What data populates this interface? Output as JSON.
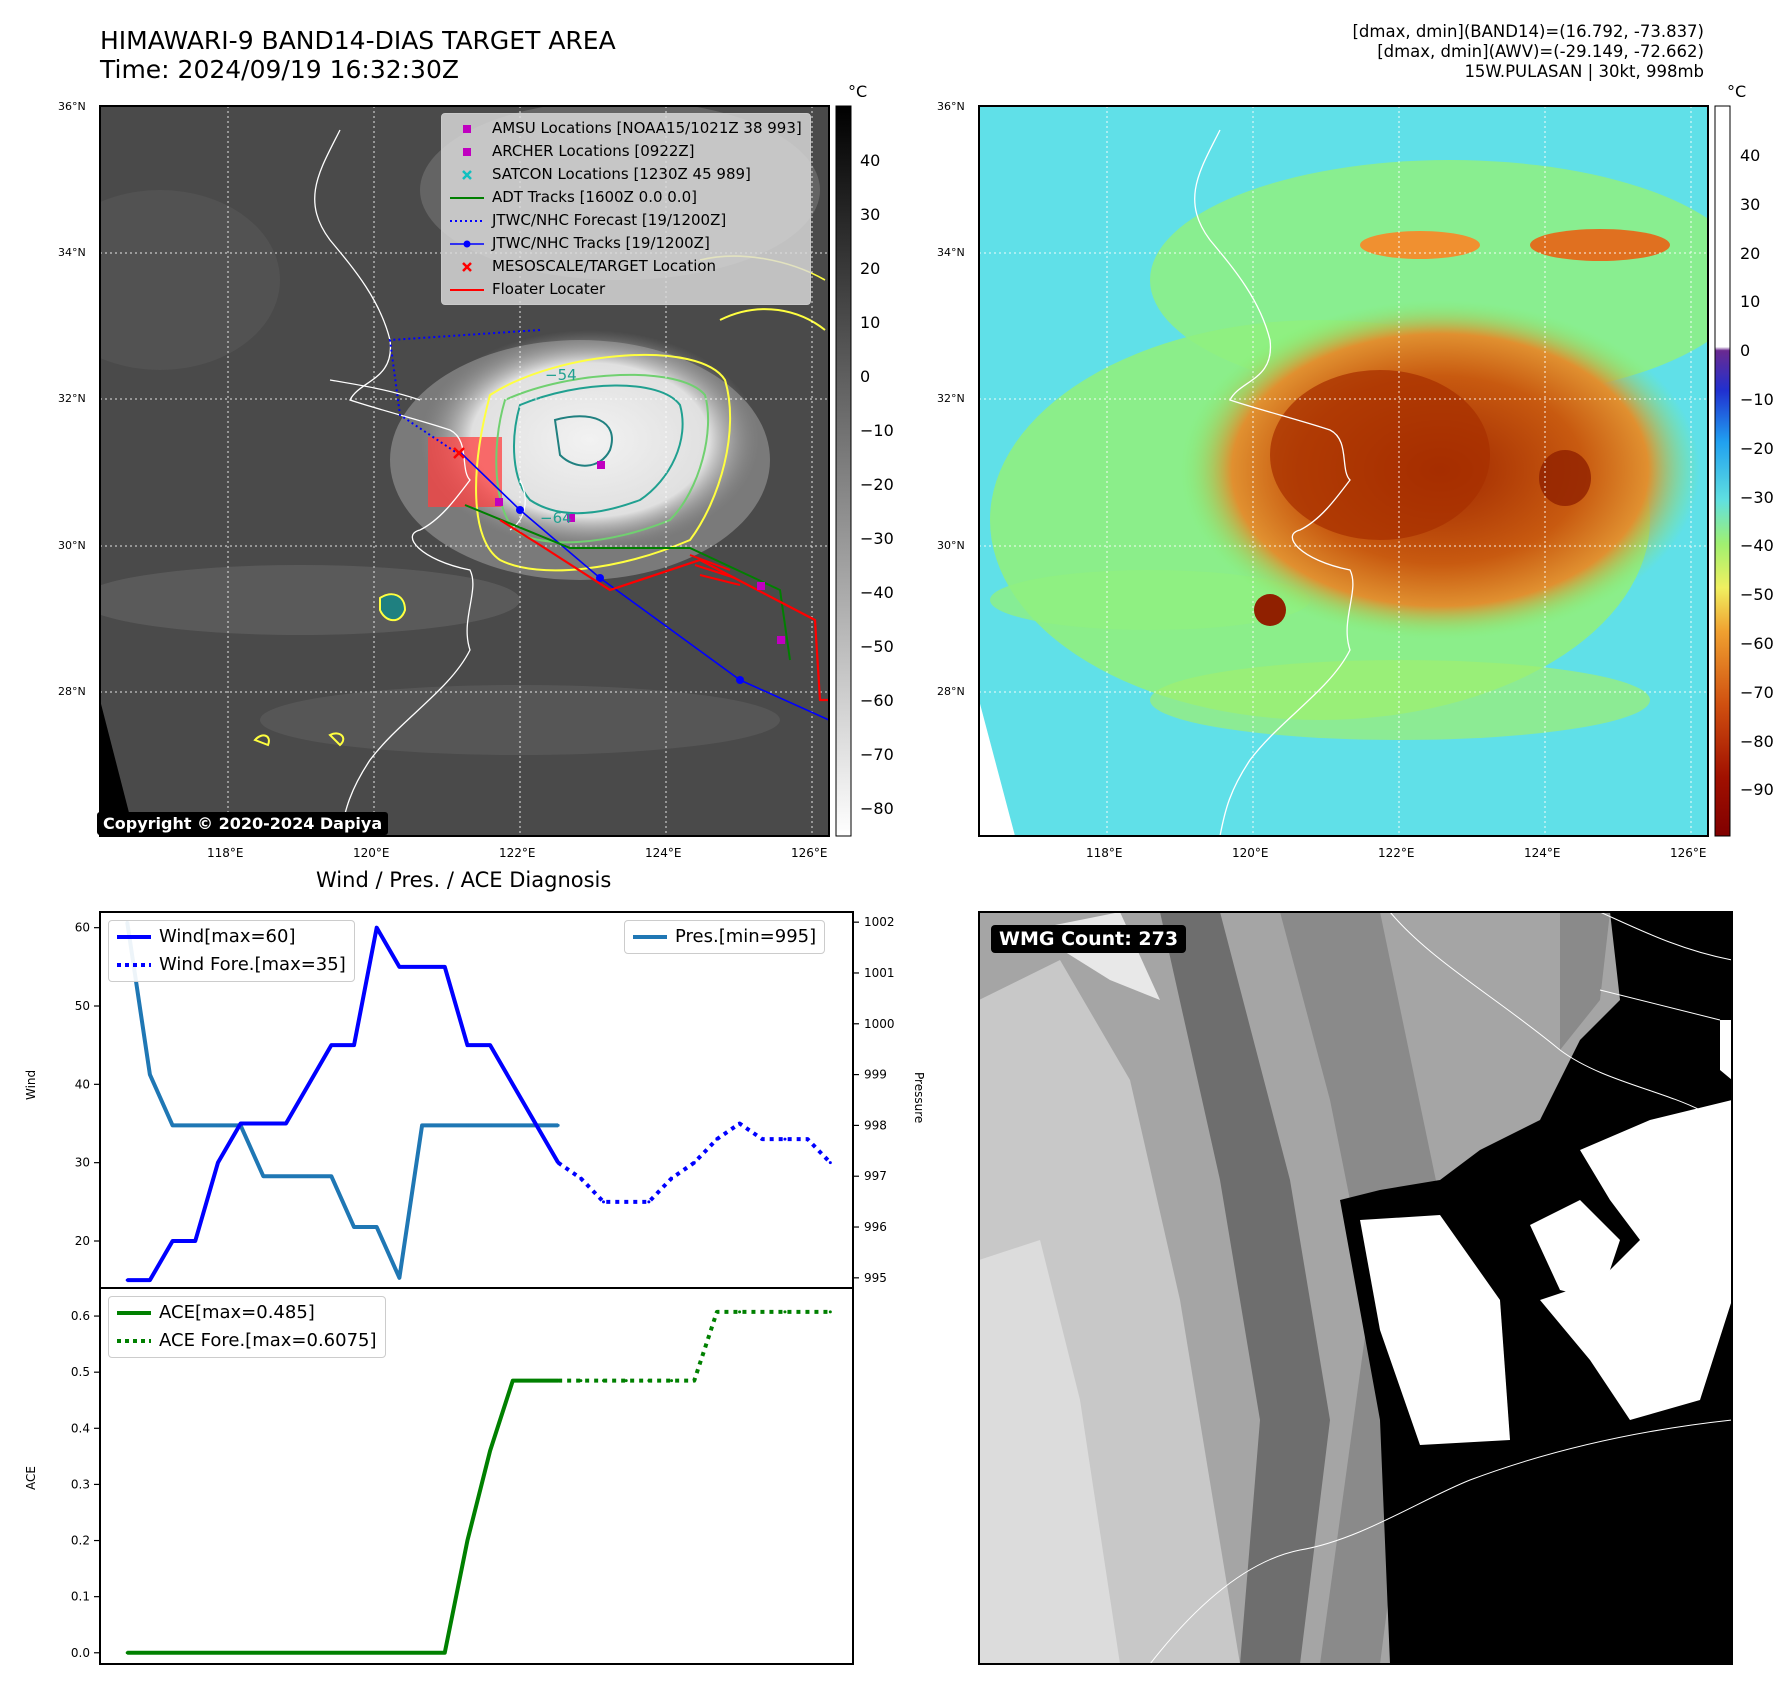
{
  "header": {
    "title_line1": "HIMAWARI-9 BAND14-DIAS TARGET AREA",
    "title_line2": "Time: 2024/09/19 16:32:30Z",
    "right_line1": "[dmax, dmin](BAND14)=(16.792, -73.837)",
    "right_line2": "[dmax, dmin](AWV)=(-29.149, -72.662)",
    "right_line3": "15W.PULASAN | 30kt, 998mb"
  },
  "maps": {
    "lat_labels": [
      "36°N",
      "34°N",
      "32°N",
      "30°N",
      "28°N"
    ],
    "lon_labels": [
      "118°E",
      "120°E",
      "122°E",
      "124°E",
      "126°E"
    ],
    "unit": "°C",
    "ir_colorbar_ticks": [
      "40",
      "30",
      "20",
      "10",
      "0",
      "−10",
      "−20",
      "−30",
      "−40",
      "−50",
      "−60",
      "−70",
      "−80"
    ],
    "awv_colorbar_ticks": [
      "40",
      "30",
      "20",
      "10",
      "0",
      "−10",
      "−20",
      "−30",
      "−40",
      "−50",
      "−60",
      "−70",
      "−80",
      "−90"
    ],
    "contour_labels": [
      "−54",
      "−64"
    ],
    "copyright": "Copyright © 2020-2024 Dapiya",
    "legend": [
      {
        "label": "AMSU Locations [NOAA15/1021Z 38 993]",
        "symbol": "square",
        "color": "#c000c0"
      },
      {
        "label": "ARCHER Locations [0922Z]",
        "symbol": "square",
        "color": "#c000c0"
      },
      {
        "label": "SATCON Locations [1230Z 45 989]",
        "symbol": "x",
        "color": "#10c0c0"
      },
      {
        "label": "ADT Tracks [1600Z 0.0 0.0]",
        "symbol": "line",
        "color": "#007f00"
      },
      {
        "label": "JTWC/NHC Forecast [19/1200Z]",
        "symbol": "dotted",
        "color": "#0000ff"
      },
      {
        "label": "JTWC/NHC Tracks [19/1200Z]",
        "symbol": "line-dot",
        "color": "#0000ff"
      },
      {
        "label": "MESOSCALE/TARGET Location",
        "symbol": "x",
        "color": "#ff0000"
      },
      {
        "label": "Floater Locater",
        "symbol": "line",
        "color": "#ff0000"
      }
    ]
  },
  "diagnosis": {
    "title": "Wind / Pres. / ACE Diagnosis",
    "wind_axis_label": "Wind",
    "pressure_axis_label": "Pressure",
    "ace_axis_label": "ACE",
    "wind_legend": "Wind[max=60]",
    "wind_fore_legend": "Wind Fore.[max=35]",
    "pres_legend": "Pres.[min=995]",
    "ace_legend": "ACE[max=0.485]",
    "ace_fore_legend": "ACE Fore.[max=0.6075]"
  },
  "wmg": {
    "badge": "WMG Count: 273"
  },
  "chart_data": [
    {
      "type": "line",
      "title": "Wind / Pres. / ACE Diagnosis",
      "ylabel": "Wind",
      "ylim": [
        14,
        62
      ],
      "y_ticks": [
        20,
        30,
        40,
        50,
        60
      ],
      "series": [
        {
          "name": "Wind[max=60]",
          "style": "solid",
          "color": "#0000ff",
          "x": [
            0,
            1,
            2,
            3,
            4,
            5,
            6,
            7,
            8,
            9,
            10,
            11,
            12,
            13,
            14,
            15,
            16,
            17,
            18,
            19
          ],
          "values": [
            15,
            15,
            20,
            20,
            30,
            35,
            35,
            35,
            40,
            45,
            45,
            60,
            55,
            55,
            55,
            45,
            45,
            40,
            35,
            30
          ]
        },
        {
          "name": "Wind Fore.[max=35]",
          "style": "dotted",
          "color": "#0000ff",
          "x": [
            19,
            20,
            21,
            22,
            23,
            24,
            25,
            26,
            27,
            28,
            29,
            30,
            31
          ],
          "values": [
            30,
            28,
            25,
            25,
            25,
            28,
            30,
            33,
            35,
            33,
            33,
            33,
            30
          ]
        }
      ]
    },
    {
      "type": "line",
      "ylabel": "Pressure",
      "ylim": [
        994.8,
        1002.2
      ],
      "y_ticks": [
        995,
        996,
        997,
        998,
        999,
        1000,
        1001,
        1002
      ],
      "series": [
        {
          "name": "Pres.[min=995]",
          "style": "solid",
          "color": "#1f77b4",
          "x": [
            0,
            1,
            2,
            3,
            4,
            5,
            6,
            7,
            8,
            9,
            10,
            11,
            12,
            13,
            14,
            15,
            16,
            17,
            18,
            19
          ],
          "values": [
            1002,
            999,
            998,
            998,
            998,
            998,
            997,
            997,
            997,
            997,
            996,
            996,
            995,
            998,
            998,
            998,
            998,
            998,
            998,
            998
          ]
        }
      ]
    },
    {
      "type": "line",
      "ylabel": "ACE",
      "ylim": [
        -0.02,
        0.65
      ],
      "y_ticks": [
        0.0,
        0.1,
        0.2,
        0.3,
        0.4,
        0.5,
        0.6
      ],
      "series": [
        {
          "name": "ACE[max=0.485]",
          "style": "solid",
          "color": "#008000",
          "x": [
            0,
            1,
            2,
            3,
            4,
            5,
            6,
            7,
            8,
            9,
            10,
            11,
            12,
            13,
            14,
            15,
            16,
            17,
            18,
            19
          ],
          "values": [
            0,
            0,
            0,
            0,
            0,
            0,
            0,
            0,
            0,
            0,
            0,
            0,
            0,
            0,
            0,
            0.2,
            0.36,
            0.485,
            0.485,
            0.485
          ]
        },
        {
          "name": "ACE Fore.[max=0.6075]",
          "style": "dotted",
          "color": "#008000",
          "x": [
            19,
            20,
            21,
            22,
            23,
            24,
            25,
            26,
            27,
            28,
            29,
            30,
            31
          ],
          "values": [
            0.485,
            0.485,
            0.485,
            0.485,
            0.485,
            0.485,
            0.485,
            0.6075,
            0.6075,
            0.6075,
            0.6075,
            0.6075,
            0.6075
          ]
        }
      ]
    }
  ]
}
